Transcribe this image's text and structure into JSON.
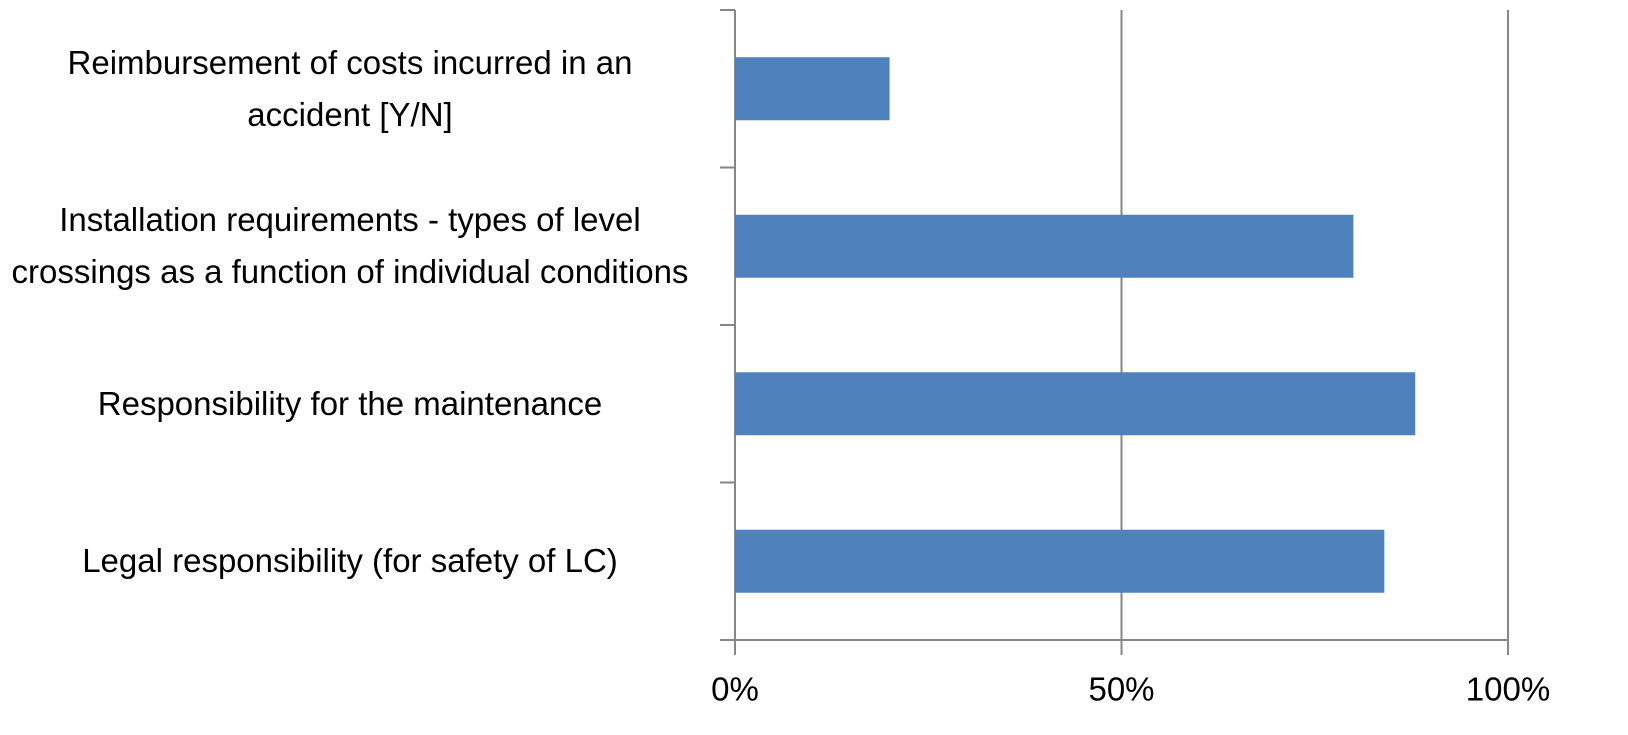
{
  "chart_data": {
    "type": "hbar",
    "categories": [
      "Reimbursement of costs incurred in an accident [Y/N]",
      "Installation requirements - types of level crossings as a function of individual conditions",
      "Responsibility for the maintenance",
      "Legal responsibility (for safety of LC)"
    ],
    "values": [
      20,
      80,
      88,
      84
    ],
    "color": "#4f81bd",
    "xlim": [
      0,
      100
    ],
    "xticks": [
      {
        "value": 0,
        "label": "0%"
      },
      {
        "value": 50,
        "label": "50%"
      },
      {
        "value": 100,
        "label": "100%"
      }
    ],
    "grid": true
  }
}
